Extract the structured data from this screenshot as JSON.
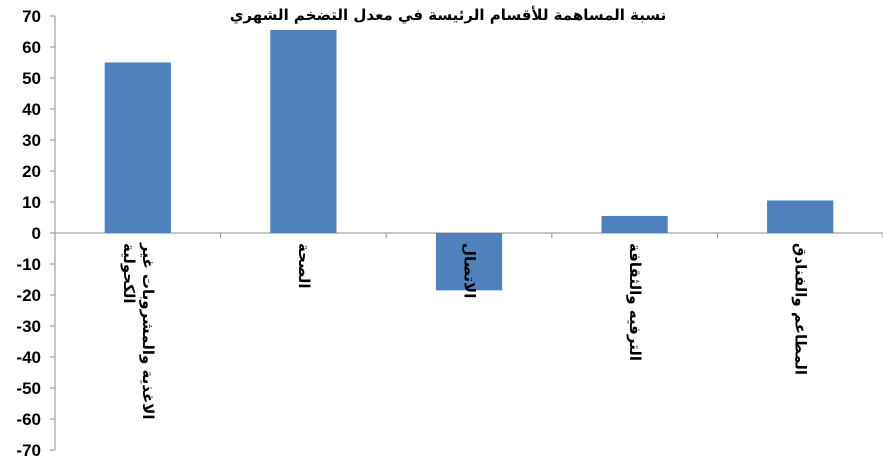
{
  "chart_data": {
    "type": "bar",
    "title": "نسبة المساهمة للأقسام الرئيسة في معدل التضخم الشهري",
    "categories": [
      [
        "الاغذية والمشروبات غير",
        "الكحولية"
      ],
      [
        "الصحة"
      ],
      [
        "الاتصال"
      ],
      [
        "الترفيه والثقافة"
      ],
      [
        "المطاعم والفنادق"
      ]
    ],
    "values": [
      55,
      65.5,
      -18.5,
      5.5,
      10.5
    ],
    "ylim": [
      -70,
      70
    ],
    "yticks": [
      70,
      60,
      50,
      40,
      30,
      20,
      10,
      0,
      -10,
      -20,
      -30,
      -40,
      -50,
      -60,
      -70
    ],
    "xlabel": "",
    "ylabel": "",
    "grid": false,
    "colors": {
      "bar": "#4f81bd",
      "axis": "#8c8c8c"
    }
  }
}
